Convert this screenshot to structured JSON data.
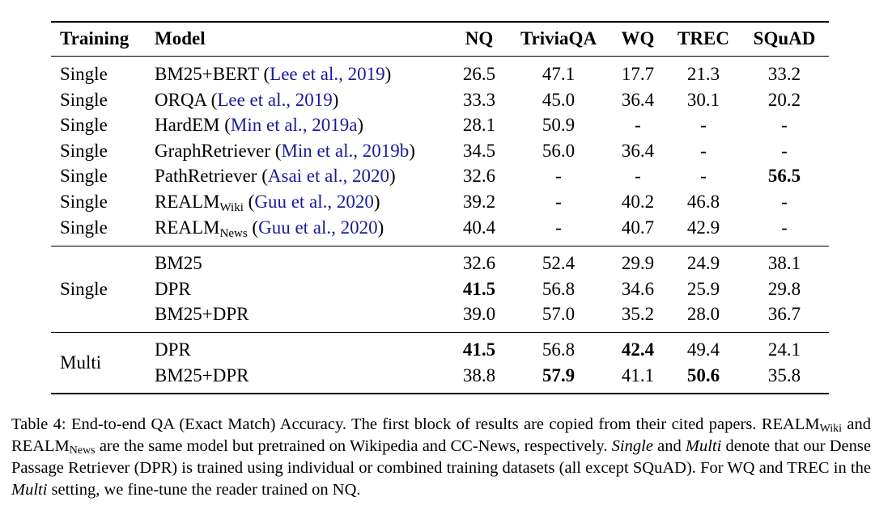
{
  "table": {
    "headers": [
      "Training",
      "Model",
      "NQ",
      "TriviaQA",
      "WQ",
      "TREC",
      "SQuAD"
    ],
    "block1": [
      {
        "training": "Single",
        "model": "BM25+BERT",
        "sub": "",
        "cite": "Lee et al., 2019",
        "vals": [
          "26.5",
          "47.1",
          "17.7",
          "21.3",
          "33.2"
        ],
        "bold": [
          false,
          false,
          false,
          false,
          false
        ]
      },
      {
        "training": "Single",
        "model": "ORQA",
        "sub": "",
        "cite": "Lee et al., 2019",
        "vals": [
          "33.3",
          "45.0",
          "36.4",
          "30.1",
          "20.2"
        ],
        "bold": [
          false,
          false,
          false,
          false,
          false
        ]
      },
      {
        "training": "Single",
        "model": "HardEM",
        "sub": "",
        "cite": "Min et al., 2019a",
        "vals": [
          "28.1",
          "50.9",
          "-",
          "-",
          "-"
        ],
        "bold": [
          false,
          false,
          false,
          false,
          false
        ]
      },
      {
        "training": "Single",
        "model": "GraphRetriever",
        "sub": "",
        "cite": "Min et al., 2019b",
        "vals": [
          "34.5",
          "56.0",
          "36.4",
          "-",
          "-"
        ],
        "bold": [
          false,
          false,
          false,
          false,
          false
        ]
      },
      {
        "training": "Single",
        "model": "PathRetriever",
        "sub": "",
        "cite": "Asai et al., 2020",
        "vals": [
          "32.6",
          "-",
          "-",
          "-",
          "56.5"
        ],
        "bold": [
          false,
          false,
          false,
          false,
          true
        ]
      },
      {
        "training": "Single",
        "model": "REALM",
        "sub": "Wiki",
        "cite": "Guu et al., 2020",
        "vals": [
          "39.2",
          "-",
          "40.2",
          "46.8",
          "-"
        ],
        "bold": [
          false,
          false,
          false,
          false,
          false
        ]
      },
      {
        "training": "Single",
        "model": "REALM",
        "sub": "News",
        "cite": "Guu et al., 2020",
        "vals": [
          "40.4",
          "-",
          "40.7",
          "42.9",
          "-"
        ],
        "bold": [
          false,
          false,
          false,
          false,
          false
        ]
      }
    ],
    "block2": {
      "training": "Single",
      "rows": [
        {
          "model": "BM25",
          "vals": [
            "32.6",
            "52.4",
            "29.9",
            "24.9",
            "38.1"
          ],
          "bold": [
            false,
            false,
            false,
            false,
            false
          ]
        },
        {
          "model": "DPR",
          "vals": [
            "41.5",
            "56.8",
            "34.6",
            "25.9",
            "29.8"
          ],
          "bold": [
            true,
            false,
            false,
            false,
            false
          ]
        },
        {
          "model": "BM25+DPR",
          "vals": [
            "39.0",
            "57.0",
            "35.2",
            "28.0",
            "36.7"
          ],
          "bold": [
            false,
            false,
            false,
            false,
            false
          ]
        }
      ]
    },
    "block3": {
      "training": "Multi",
      "rows": [
        {
          "model": "DPR",
          "vals": [
            "41.5",
            "56.8",
            "42.4",
            "49.4",
            "24.1"
          ],
          "bold": [
            true,
            false,
            true,
            false,
            false
          ]
        },
        {
          "model": "BM25+DPR",
          "vals": [
            "38.8",
            "57.9",
            "41.1",
            "50.6",
            "35.8"
          ],
          "bold": [
            false,
            true,
            false,
            true,
            false
          ]
        }
      ]
    }
  },
  "caption": {
    "label": "Table 4:",
    "s1": " End-to-end QA (Exact Match) Accuracy.  The first block of results are copied from their cited papers. ",
    "realm": "REALM",
    "wiki": "Wiki",
    "and": " and ",
    "news": "News",
    "s2": " are the same model but pretrained on Wikipedia and CC-News, respectively. ",
    "single": "Single",
    "s3": " and ",
    "multi": "Multi",
    "s4": " denote that our Dense Passage Retriever (DPR) is trained using individual or combined training datasets (all except SQuAD). For WQ and TREC in the ",
    "s5": " setting, we fine-tune the reader trained on NQ."
  }
}
